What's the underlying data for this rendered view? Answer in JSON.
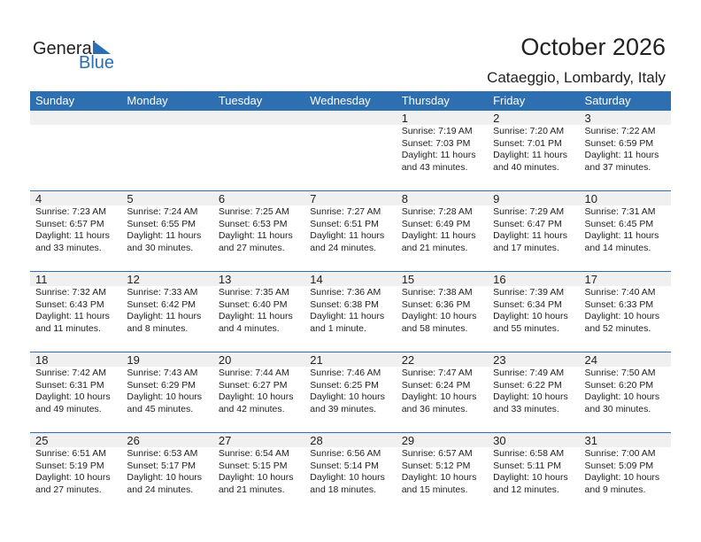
{
  "logo": {
    "general": "General",
    "blue": "Blue"
  },
  "title": "October 2026",
  "location": "Cataeggio, Lombardy, Italy",
  "weekdays": [
    "Sunday",
    "Monday",
    "Tuesday",
    "Wednesday",
    "Thursday",
    "Friday",
    "Saturday"
  ],
  "weeks": [
    [
      null,
      null,
      null,
      null,
      {
        "day": "1",
        "sunrise": "Sunrise: 7:19 AM",
        "sunset": "Sunset: 7:03 PM",
        "daylight1": "Daylight: 11 hours",
        "daylight2": "and 43 minutes."
      },
      {
        "day": "2",
        "sunrise": "Sunrise: 7:20 AM",
        "sunset": "Sunset: 7:01 PM",
        "daylight1": "Daylight: 11 hours",
        "daylight2": "and 40 minutes."
      },
      {
        "day": "3",
        "sunrise": "Sunrise: 7:22 AM",
        "sunset": "Sunset: 6:59 PM",
        "daylight1": "Daylight: 11 hours",
        "daylight2": "and 37 minutes."
      }
    ],
    [
      {
        "day": "4",
        "sunrise": "Sunrise: 7:23 AM",
        "sunset": "Sunset: 6:57 PM",
        "daylight1": "Daylight: 11 hours",
        "daylight2": "and 33 minutes."
      },
      {
        "day": "5",
        "sunrise": "Sunrise: 7:24 AM",
        "sunset": "Sunset: 6:55 PM",
        "daylight1": "Daylight: 11 hours",
        "daylight2": "and 30 minutes."
      },
      {
        "day": "6",
        "sunrise": "Sunrise: 7:25 AM",
        "sunset": "Sunset: 6:53 PM",
        "daylight1": "Daylight: 11 hours",
        "daylight2": "and 27 minutes."
      },
      {
        "day": "7",
        "sunrise": "Sunrise: 7:27 AM",
        "sunset": "Sunset: 6:51 PM",
        "daylight1": "Daylight: 11 hours",
        "daylight2": "and 24 minutes."
      },
      {
        "day": "8",
        "sunrise": "Sunrise: 7:28 AM",
        "sunset": "Sunset: 6:49 PM",
        "daylight1": "Daylight: 11 hours",
        "daylight2": "and 21 minutes."
      },
      {
        "day": "9",
        "sunrise": "Sunrise: 7:29 AM",
        "sunset": "Sunset: 6:47 PM",
        "daylight1": "Daylight: 11 hours",
        "daylight2": "and 17 minutes."
      },
      {
        "day": "10",
        "sunrise": "Sunrise: 7:31 AM",
        "sunset": "Sunset: 6:45 PM",
        "daylight1": "Daylight: 11 hours",
        "daylight2": "and 14 minutes."
      }
    ],
    [
      {
        "day": "11",
        "sunrise": "Sunrise: 7:32 AM",
        "sunset": "Sunset: 6:43 PM",
        "daylight1": "Daylight: 11 hours",
        "daylight2": "and 11 minutes."
      },
      {
        "day": "12",
        "sunrise": "Sunrise: 7:33 AM",
        "sunset": "Sunset: 6:42 PM",
        "daylight1": "Daylight: 11 hours",
        "daylight2": "and 8 minutes."
      },
      {
        "day": "13",
        "sunrise": "Sunrise: 7:35 AM",
        "sunset": "Sunset: 6:40 PM",
        "daylight1": "Daylight: 11 hours",
        "daylight2": "and 4 minutes."
      },
      {
        "day": "14",
        "sunrise": "Sunrise: 7:36 AM",
        "sunset": "Sunset: 6:38 PM",
        "daylight1": "Daylight: 11 hours",
        "daylight2": "and 1 minute."
      },
      {
        "day": "15",
        "sunrise": "Sunrise: 7:38 AM",
        "sunset": "Sunset: 6:36 PM",
        "daylight1": "Daylight: 10 hours",
        "daylight2": "and 58 minutes."
      },
      {
        "day": "16",
        "sunrise": "Sunrise: 7:39 AM",
        "sunset": "Sunset: 6:34 PM",
        "daylight1": "Daylight: 10 hours",
        "daylight2": "and 55 minutes."
      },
      {
        "day": "17",
        "sunrise": "Sunrise: 7:40 AM",
        "sunset": "Sunset: 6:33 PM",
        "daylight1": "Daylight: 10 hours",
        "daylight2": "and 52 minutes."
      }
    ],
    [
      {
        "day": "18",
        "sunrise": "Sunrise: 7:42 AM",
        "sunset": "Sunset: 6:31 PM",
        "daylight1": "Daylight: 10 hours",
        "daylight2": "and 49 minutes."
      },
      {
        "day": "19",
        "sunrise": "Sunrise: 7:43 AM",
        "sunset": "Sunset: 6:29 PM",
        "daylight1": "Daylight: 10 hours",
        "daylight2": "and 45 minutes."
      },
      {
        "day": "20",
        "sunrise": "Sunrise: 7:44 AM",
        "sunset": "Sunset: 6:27 PM",
        "daylight1": "Daylight: 10 hours",
        "daylight2": "and 42 minutes."
      },
      {
        "day": "21",
        "sunrise": "Sunrise: 7:46 AM",
        "sunset": "Sunset: 6:25 PM",
        "daylight1": "Daylight: 10 hours",
        "daylight2": "and 39 minutes."
      },
      {
        "day": "22",
        "sunrise": "Sunrise: 7:47 AM",
        "sunset": "Sunset: 6:24 PM",
        "daylight1": "Daylight: 10 hours",
        "daylight2": "and 36 minutes."
      },
      {
        "day": "23",
        "sunrise": "Sunrise: 7:49 AM",
        "sunset": "Sunset: 6:22 PM",
        "daylight1": "Daylight: 10 hours",
        "daylight2": "and 33 minutes."
      },
      {
        "day": "24",
        "sunrise": "Sunrise: 7:50 AM",
        "sunset": "Sunset: 6:20 PM",
        "daylight1": "Daylight: 10 hours",
        "daylight2": "and 30 minutes."
      }
    ],
    [
      {
        "day": "25",
        "sunrise": "Sunrise: 6:51 AM",
        "sunset": "Sunset: 5:19 PM",
        "daylight1": "Daylight: 10 hours",
        "daylight2": "and 27 minutes."
      },
      {
        "day": "26",
        "sunrise": "Sunrise: 6:53 AM",
        "sunset": "Sunset: 5:17 PM",
        "daylight1": "Daylight: 10 hours",
        "daylight2": "and 24 minutes."
      },
      {
        "day": "27",
        "sunrise": "Sunrise: 6:54 AM",
        "sunset": "Sunset: 5:15 PM",
        "daylight1": "Daylight: 10 hours",
        "daylight2": "and 21 minutes."
      },
      {
        "day": "28",
        "sunrise": "Sunrise: 6:56 AM",
        "sunset": "Sunset: 5:14 PM",
        "daylight1": "Daylight: 10 hours",
        "daylight2": "and 18 minutes."
      },
      {
        "day": "29",
        "sunrise": "Sunrise: 6:57 AM",
        "sunset": "Sunset: 5:12 PM",
        "daylight1": "Daylight: 10 hours",
        "daylight2": "and 15 minutes."
      },
      {
        "day": "30",
        "sunrise": "Sunrise: 6:58 AM",
        "sunset": "Sunset: 5:11 PM",
        "daylight1": "Daylight: 10 hours",
        "daylight2": "and 12 minutes."
      },
      {
        "day": "31",
        "sunrise": "Sunrise: 7:00 AM",
        "sunset": "Sunset: 5:09 PM",
        "daylight1": "Daylight: 10 hours",
        "daylight2": "and 9 minutes."
      }
    ]
  ]
}
